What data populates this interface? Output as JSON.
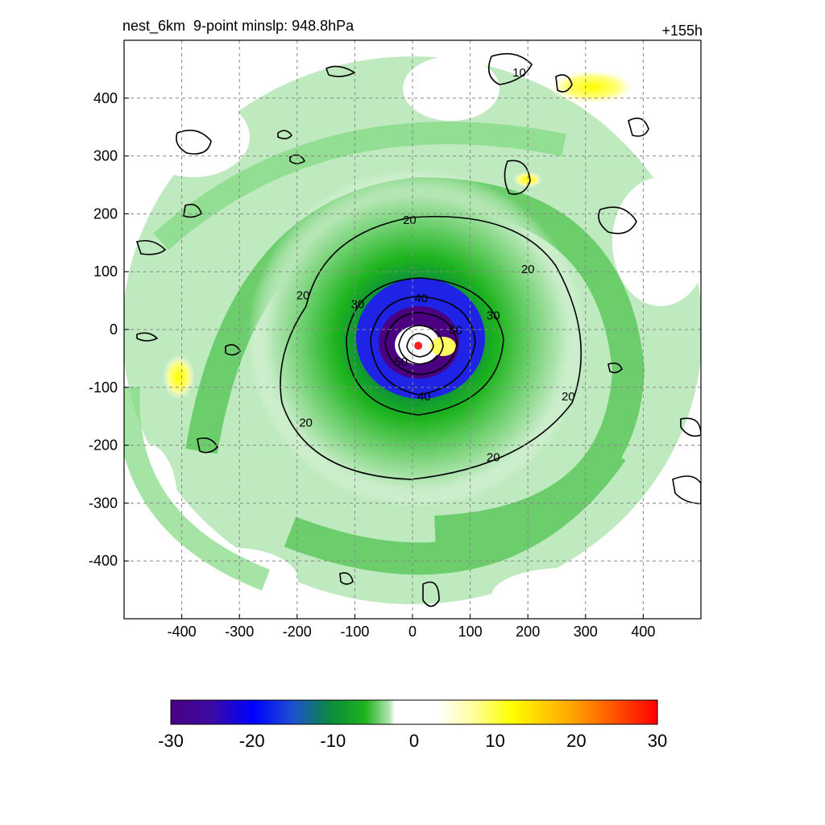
{
  "figure": {
    "left_title": "nest_6km  9-point minslp: 948.8hPa",
    "right_title": "+155h"
  },
  "colors": {
    "deep_purple": "#4b0082",
    "blue": "#1e23e6",
    "dark_green": "#0a8c3c",
    "green": "#1eb41e",
    "light_green": "#b4e6b4",
    "white": "#ffffff",
    "yellow": "#ffff00",
    "orange": "#ffa000",
    "red": "#ff0000",
    "storm_center": "#ff2020"
  },
  "chart_data": {
    "type": "heatmap",
    "title": "nest_6km  9-point minslp: 948.8hPa",
    "subtitle": "+155h",
    "xlabel": "",
    "ylabel": "",
    "xlim": [
      -500,
      500
    ],
    "ylim": [
      -500,
      500
    ],
    "x_ticks": [
      -400,
      -300,
      -200,
      -100,
      0,
      100,
      200,
      300,
      400
    ],
    "y_ticks": [
      400,
      300,
      200,
      100,
      0,
      -100,
      -200,
      -300,
      -400
    ],
    "grid": true,
    "colorbar": {
      "min": -30,
      "max": 30,
      "ticks": [
        -30,
        -20,
        -10,
        0,
        10,
        20,
        30
      ],
      "tick_labels": [
        "-30",
        "-20",
        "-10",
        "0",
        "10",
        "20",
        "30"
      ],
      "orientation": "horizontal",
      "placement": "bottom"
    },
    "contour_levels": [
      {
        "label": "10",
        "x": 185,
        "y": 440
      },
      {
        "label": "20",
        "x": -5,
        "y": 185
      },
      {
        "label": "20",
        "x": 200,
        "y": 100
      },
      {
        "label": "20",
        "x": -190,
        "y": 55
      },
      {
        "label": "20",
        "x": 270,
        "y": -120
      },
      {
        "label": "20",
        "x": -185,
        "y": -165
      },
      {
        "label": "20",
        "x": 140,
        "y": -225
      },
      {
        "label": "30",
        "x": -95,
        "y": 40
      },
      {
        "label": "30",
        "x": 140,
        "y": 20
      },
      {
        "label": "40",
        "x": 15,
        "y": 50
      },
      {
        "label": "40",
        "x": 20,
        "y": -120
      },
      {
        "label": "50",
        "x": 75,
        "y": -5
      },
      {
        "label": "50",
        "x": -20,
        "y": -60
      }
    ],
    "storm_center": {
      "x": 10,
      "y": -28
    }
  }
}
